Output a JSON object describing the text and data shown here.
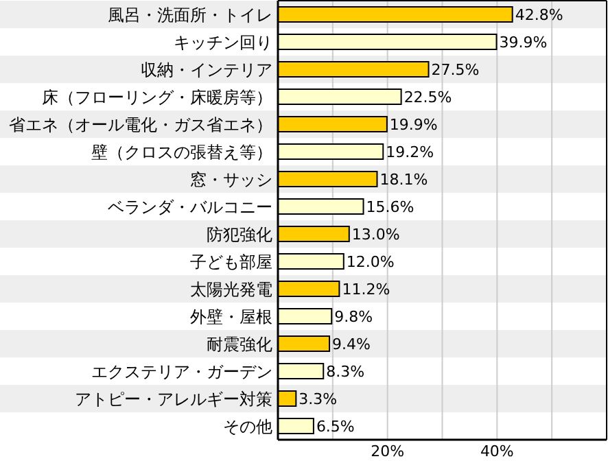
{
  "chart_data": {
    "type": "bar",
    "orientation": "horizontal",
    "categories": [
      "風呂・洗面所・トイレ",
      "キッチン回り",
      "収納・インテリア",
      "床（フローリング・床暖房等）",
      "省エネ（オール電化・ガス省エネ）",
      "壁（クロスの張替え等）",
      "窓・サッシ",
      "ベランダ・バルコニー",
      "防犯強化",
      "子ども部屋",
      "太陽光発電",
      "外壁・屋根",
      "耐震強化",
      "エクステリア・ガーデン",
      "アトピー・アレルギー対策",
      "その他"
    ],
    "values": [
      42.8,
      39.9,
      27.5,
      22.5,
      19.9,
      19.2,
      18.1,
      15.6,
      13.0,
      12.0,
      11.2,
      9.8,
      9.4,
      8.3,
      3.3,
      6.5
    ],
    "value_labels": [
      "42.8%",
      "39.9%",
      "27.5%",
      "22.5%",
      "19.9%",
      "19.2%",
      "18.1%",
      "15.6%",
      "13.0%",
      "12.0%",
      "11.2%",
      "9.8%",
      "9.4%",
      "8.3%",
      "3.3%",
      "6.5%"
    ],
    "colors": [
      "#ffcc00",
      "#ffffcc",
      "#ffcc00",
      "#ffffcc",
      "#ffcc00",
      "#ffffcc",
      "#ffcc00",
      "#ffffcc",
      "#ffcc00",
      "#ffffcc",
      "#ffcc00",
      "#ffffcc",
      "#ffcc00",
      "#ffffcc",
      "#ffcc00",
      "#ffffcc"
    ],
    "xlim": [
      0,
      60
    ],
    "xticks": [
      {
        "value": 10,
        "label": null
      },
      {
        "value": 20,
        "label": "20%"
      },
      {
        "value": 30,
        "label": null
      },
      {
        "value": 40,
        "label": "40%"
      },
      {
        "value": 50,
        "label": null
      }
    ],
    "grid": "x"
  }
}
